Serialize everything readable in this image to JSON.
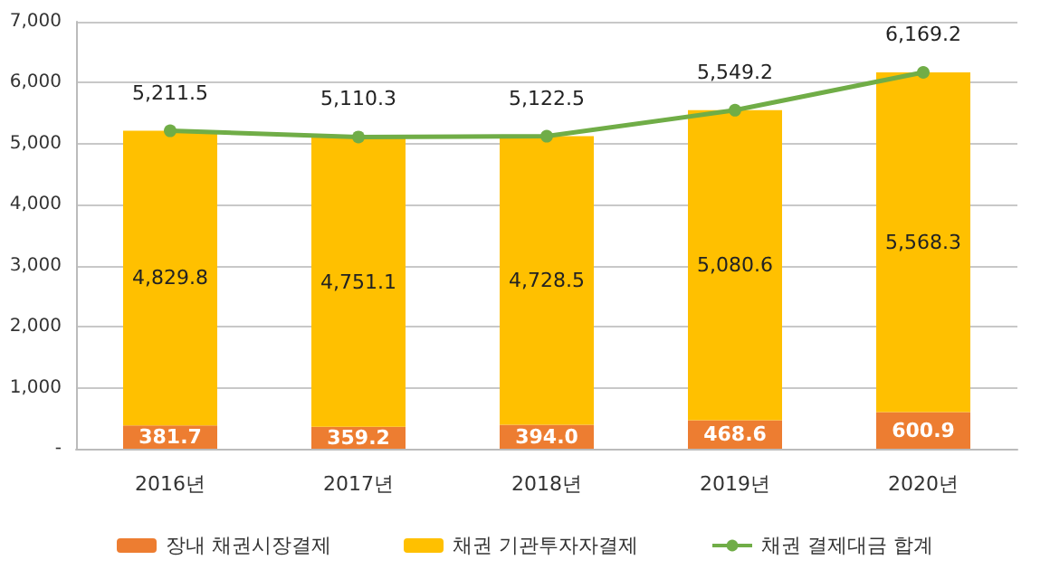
{
  "chart_data": {
    "type": "bar",
    "stacked": true,
    "categories": [
      "2016년",
      "2017년",
      "2018년",
      "2019년",
      "2020년"
    ],
    "series": [
      {
        "name": "장내 채권시장결제",
        "color": "#ed7d31",
        "values": [
          381.7,
          359.2,
          394.0,
          468.6,
          600.9
        ],
        "value_labels": [
          "381.7",
          "359.2",
          "394.0",
          "468.6",
          "600.9"
        ]
      },
      {
        "name": "채권 기관투자자결제",
        "color": "#ffc000",
        "values": [
          4829.8,
          4751.1,
          4728.5,
          5080.6,
          5568.3
        ],
        "value_labels": [
          "4,829.8",
          "4,751.1",
          "4,728.5",
          "5,080.6",
          "5,568.3"
        ]
      },
      {
        "name": "채권 결제대금 합계",
        "type": "line",
        "color": "#70ad47",
        "marker": "circle",
        "values": [
          5211.5,
          5110.3,
          5122.5,
          5549.2,
          6169.2
        ],
        "value_labels": [
          "5,211.5",
          "5,110.3",
          "5,122.5",
          "5,549.2",
          "6,169.2"
        ]
      }
    ],
    "ylim": [
      0,
      7000
    ],
    "yticks": [
      {
        "value": 0,
        "label": "-"
      },
      {
        "value": 1000,
        "label": "1,000"
      },
      {
        "value": 2000,
        "label": "2,000"
      },
      {
        "value": 3000,
        "label": "3,000"
      },
      {
        "value": 4000,
        "label": "4,000"
      },
      {
        "value": 5000,
        "label": "5,000"
      },
      {
        "value": 6000,
        "label": "6,000"
      },
      {
        "value": 7000,
        "label": "7,000"
      }
    ],
    "grid": true,
    "legend": "bottom"
  }
}
